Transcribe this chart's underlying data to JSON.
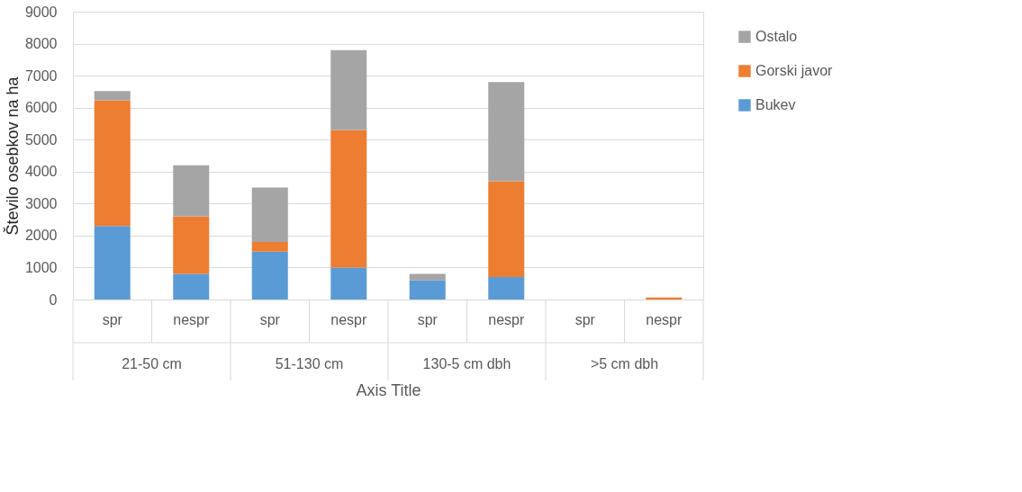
{
  "chart_data": {
    "type": "bar",
    "stacked": true,
    "xlabel": "Axis Title",
    "ylabel": "Število osebkov na ha",
    "categories": [
      "spr",
      "nespr",
      "spr",
      "nespr",
      "spr",
      "nespr",
      "spr",
      "nespr"
    ],
    "annotations": [
      "21-50 cm",
      "51-130 cm",
      "130-5 cm dbh",
      ">5 cm dbh"
    ],
    "series": [
      {
        "name": "Bukev",
        "color": "#5b9bd5",
        "values": [
          2300,
          800,
          1500,
          1000,
          600,
          700,
          0,
          0
        ]
      },
      {
        "name": "Gorski javor",
        "color": "#ed7d31",
        "values": [
          3930,
          1800,
          300,
          4300,
          0,
          3000,
          0,
          60
        ]
      },
      {
        "name": "Ostalo",
        "color": "#a5a5a5",
        "values": [
          290,
          1600,
          1700,
          2500,
          200,
          3100,
          0,
          0
        ]
      }
    ],
    "ylim": [
      0,
      9000
    ],
    "yticks": [
      0,
      1000,
      2000,
      3000,
      4000,
      5000,
      6000,
      7000,
      8000,
      9000
    ],
    "grid": "y",
    "legend": "right"
  }
}
